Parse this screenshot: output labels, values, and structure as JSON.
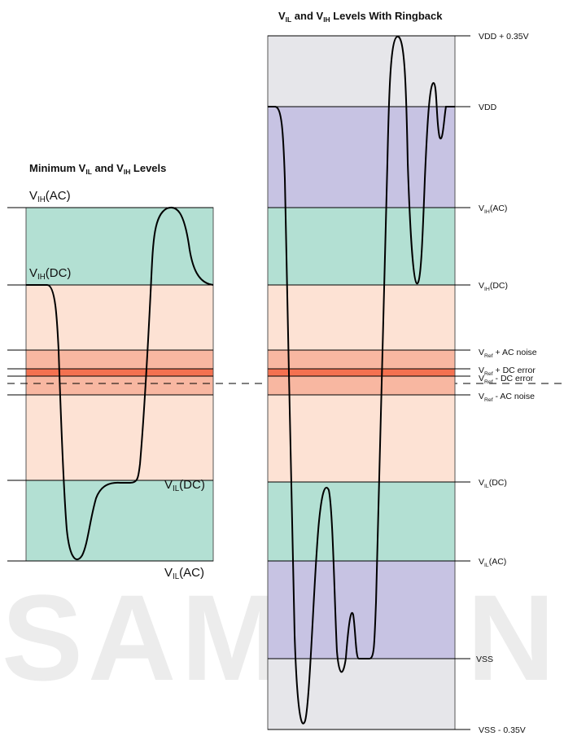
{
  "watermark": "SAMSUNG",
  "left_diagram": {
    "title": {
      "prefix": "Minimum V",
      "sub1": "IL",
      "middle": " and V",
      "sub2": "IH",
      "suffix": " Levels"
    },
    "labels": {
      "vih_ac": {
        "main": "V",
        "sub": "IH",
        "rest": "(AC)"
      },
      "vih_dc": {
        "main": "V",
        "sub": "IH",
        "rest": "(DC)"
      },
      "vil_dc": {
        "main": "V",
        "sub": "IL",
        "rest": "(DC)"
      },
      "vil_ac": {
        "main": "V",
        "sub": "IL",
        "rest": "(AC)"
      }
    }
  },
  "right_diagram": {
    "title": {
      "prefix": "V",
      "sub1": "IL",
      "middle": " and V",
      "sub2": "IH",
      "suffix": " Levels With Ringback"
    },
    "levels": [
      {
        "key": "vdd_plus",
        "main": "VDD + 0.35V",
        "sub": "",
        "rest": ""
      },
      {
        "key": "vdd",
        "main": "VDD",
        "sub": "",
        "rest": ""
      },
      {
        "key": "vih_ac",
        "main": "V",
        "sub": "IH",
        "rest": "(AC)"
      },
      {
        "key": "vih_dc",
        "main": "V",
        "sub": "IH",
        "rest": "(DC)"
      },
      {
        "key": "vref_ac_noise_hi",
        "main": "V",
        "sub": "Ref",
        "rest": " + AC noise"
      },
      {
        "key": "vref_dc_err_hi",
        "main": "V",
        "sub": "Ref",
        "rest": " + DC error"
      },
      {
        "key": "vref_dc_err_lo",
        "main": "V",
        "sub": "Ref",
        "rest": " - DC error"
      },
      {
        "key": "vref_ac_noise_lo",
        "main": "V",
        "sub": "Ref",
        "rest": " - AC noise"
      },
      {
        "key": "vil_dc",
        "main": "V",
        "sub": "IL",
        "rest": "(DC)"
      },
      {
        "key": "vil_ac",
        "main": "V",
        "sub": "IL",
        "rest": "(AC)"
      },
      {
        "key": "vss",
        "main": "VSS",
        "sub": "",
        "rest": ""
      },
      {
        "key": "vss_minus",
        "main": "VSS - 0.35V",
        "sub": "",
        "rest": ""
      }
    ]
  },
  "colors": {
    "teal_band": "#b3e0d3",
    "lavender_band": "#c7c3e3",
    "gray_band": "#e6e6ea",
    "peach_band": "#fde2d4",
    "salmon_band": "#f8b7a1",
    "red_band": "#f47150",
    "line": "#000000"
  }
}
